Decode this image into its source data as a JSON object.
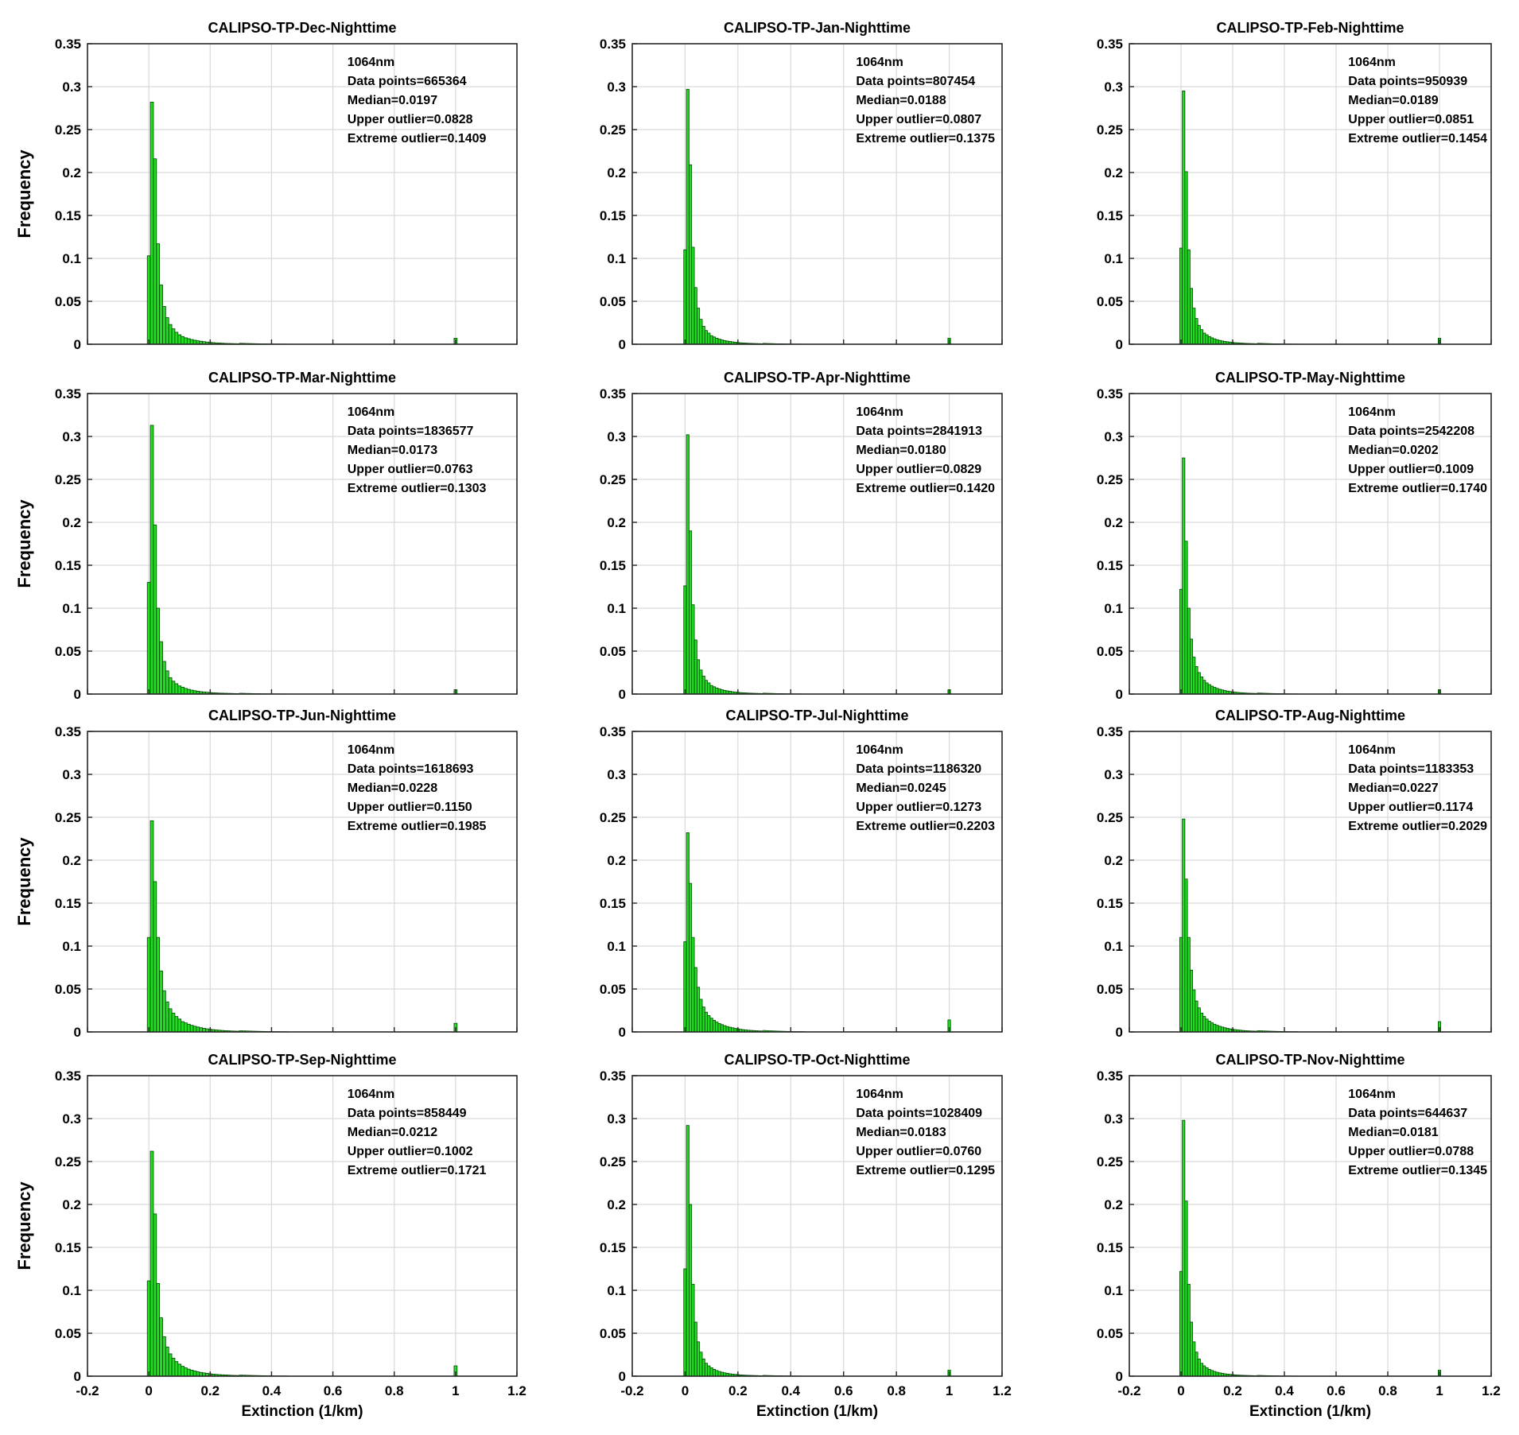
{
  "figure": {
    "ylabel": "Frequency",
    "xlabel": "Extinction (1/km)"
  },
  "chart_data": [
    {
      "type": "bar",
      "title": "CALIPSO-TP-Dec-Nighttime",
      "ylabel": "Frequency",
      "xlabel": "",
      "xlim": [
        -0.2,
        1.2
      ],
      "ylim": [
        0,
        0.35
      ],
      "xticks": [
        "-0.2",
        "0",
        "0.2",
        "0.4",
        "0.6",
        "0.8",
        "1",
        "1.2"
      ],
      "yticks": [
        "0",
        "0.05",
        "0.1",
        "0.15",
        "0.2",
        "0.25",
        "0.3",
        "0.35"
      ],
      "grid": true,
      "show_xticks": false,
      "annotations": [
        "1064nm",
        "Data points=665364",
        "Median=0.0197",
        "Upper outlier=0.0828",
        "Extreme outlier=0.1409"
      ],
      "bin_width": 0.01,
      "bins_start": -0.005,
      "values": [
        0.103,
        0.282,
        0.216,
        0.117,
        0.069,
        0.044,
        0.031,
        0.023,
        0.018,
        0.014,
        0.011,
        0.009,
        0.0075,
        0.0065,
        0.0055,
        0.0047,
        0.004,
        0.0035,
        0.003,
        0.0026,
        0.0022,
        0.0019,
        0.0016,
        0.0014,
        0.0012,
        0.001,
        0.0009,
        0.0008,
        0.0007,
        0.0006
      ],
      "tail_value": 0.0012,
      "outlier": {
        "x": 1.0,
        "value": 0.007
      }
    },
    {
      "type": "bar",
      "title": "CALIPSO-TP-Jan-Nighttime",
      "ylabel": "",
      "xlabel": "",
      "xlim": [
        -0.2,
        1.2
      ],
      "ylim": [
        0,
        0.35
      ],
      "xticks": [
        "-0.2",
        "0",
        "0.2",
        "0.4",
        "0.6",
        "0.8",
        "1",
        "1.2"
      ],
      "yticks": [
        "0",
        "0.05",
        "0.1",
        "0.15",
        "0.2",
        "0.25",
        "0.3",
        "0.35"
      ],
      "grid": true,
      "show_xticks": false,
      "annotations": [
        "1064nm",
        "Data points=807454",
        "Median=0.0188",
        "Upper outlier=0.0807",
        "Extreme outlier=0.1375"
      ],
      "bin_width": 0.01,
      "bins_start": -0.005,
      "values": [
        0.11,
        0.297,
        0.209,
        0.113,
        0.066,
        0.042,
        0.029,
        0.021,
        0.016,
        0.013,
        0.01,
        0.0085,
        0.007,
        0.006,
        0.005,
        0.0043,
        0.0037,
        0.0032,
        0.0028,
        0.0024,
        0.002,
        0.0017,
        0.0015,
        0.0013,
        0.0011,
        0.001,
        0.0009,
        0.0008,
        0.0007,
        0.0006
      ],
      "tail_value": 0.0011,
      "outlier": {
        "x": 1.0,
        "value": 0.007
      }
    },
    {
      "type": "bar",
      "title": "CALIPSO-TP-Feb-Nighttime",
      "ylabel": "",
      "xlabel": "",
      "xlim": [
        -0.2,
        1.2
      ],
      "ylim": [
        0,
        0.35
      ],
      "xticks": [
        "-0.2",
        "0",
        "0.2",
        "0.4",
        "0.6",
        "0.8",
        "1",
        "1.2"
      ],
      "yticks": [
        "0",
        "0.05",
        "0.1",
        "0.15",
        "0.2",
        "0.25",
        "0.3",
        "0.35"
      ],
      "grid": true,
      "show_xticks": false,
      "annotations": [
        "1064nm",
        "Data points=950939",
        "Median=0.0189",
        "Upper outlier=0.0851",
        "Extreme outlier=0.1454"
      ],
      "bin_width": 0.01,
      "bins_start": -0.005,
      "values": [
        0.112,
        0.295,
        0.201,
        0.11,
        0.065,
        0.042,
        0.03,
        0.022,
        0.017,
        0.013,
        0.011,
        0.009,
        0.0075,
        0.0063,
        0.0053,
        0.0045,
        0.0038,
        0.0033,
        0.0029,
        0.0025,
        0.0021,
        0.0018,
        0.0016,
        0.0014,
        0.0012,
        0.001,
        0.0009,
        0.0008,
        0.0007,
        0.0006
      ],
      "tail_value": 0.0012,
      "outlier": {
        "x": 1.0,
        "value": 0.007
      }
    },
    {
      "type": "bar",
      "title": "CALIPSO-TP-Mar-Nighttime",
      "ylabel": "Frequency",
      "xlabel": "",
      "xlim": [
        -0.2,
        1.2
      ],
      "ylim": [
        0,
        0.35
      ],
      "xticks": [
        "-0.2",
        "0",
        "0.2",
        "0.4",
        "0.6",
        "0.8",
        "1",
        "1.2"
      ],
      "yticks": [
        "0",
        "0.05",
        "0.1",
        "0.15",
        "0.2",
        "0.25",
        "0.3",
        "0.35"
      ],
      "grid": true,
      "show_xticks": false,
      "annotations": [
        "1064nm",
        "Data points=1836577",
        "Median=0.0173",
        "Upper outlier=0.0763",
        "Extreme outlier=0.1303"
      ],
      "bin_width": 0.01,
      "bins_start": -0.005,
      "values": [
        0.13,
        0.313,
        0.197,
        0.1,
        0.061,
        0.038,
        0.027,
        0.019,
        0.015,
        0.012,
        0.0095,
        0.008,
        0.0065,
        0.0055,
        0.0046,
        0.0039,
        0.0033,
        0.0028,
        0.0024,
        0.0021,
        0.0018,
        0.0015,
        0.0013,
        0.0011,
        0.001,
        0.0009,
        0.0008,
        0.0007,
        0.0006,
        0.0005
      ],
      "tail_value": 0.001,
      "outlier": {
        "x": 1.0,
        "value": 0.005
      }
    },
    {
      "type": "bar",
      "title": "CALIPSO-TP-Apr-Nighttime",
      "ylabel": "",
      "xlabel": "",
      "xlim": [
        -0.2,
        1.2
      ],
      "ylim": [
        0,
        0.35
      ],
      "xticks": [
        "-0.2",
        "0",
        "0.2",
        "0.4",
        "0.6",
        "0.8",
        "1",
        "1.2"
      ],
      "yticks": [
        "0",
        "0.05",
        "0.1",
        "0.15",
        "0.2",
        "0.25",
        "0.3",
        "0.35"
      ],
      "grid": true,
      "show_xticks": false,
      "annotations": [
        "1064nm",
        "Data points=2841913",
        "Median=0.0180",
        "Upper outlier=0.0829",
        "Extreme outlier=0.1420"
      ],
      "bin_width": 0.01,
      "bins_start": -0.005,
      "values": [
        0.126,
        0.302,
        0.19,
        0.104,
        0.063,
        0.04,
        0.028,
        0.021,
        0.016,
        0.013,
        0.01,
        0.0085,
        0.007,
        0.006,
        0.005,
        0.0043,
        0.0037,
        0.0032,
        0.0027,
        0.0023,
        0.002,
        0.0017,
        0.0015,
        0.0013,
        0.0011,
        0.001,
        0.0009,
        0.0008,
        0.0007,
        0.0006
      ],
      "tail_value": 0.0011,
      "outlier": {
        "x": 1.0,
        "value": 0.005
      }
    },
    {
      "type": "bar",
      "title": "CALIPSO-TP-May-Nighttime",
      "ylabel": "",
      "xlabel": "",
      "xlim": [
        -0.2,
        1.2
      ],
      "ylim": [
        0,
        0.35
      ],
      "xticks": [
        "-0.2",
        "0",
        "0.2",
        "0.4",
        "0.6",
        "0.8",
        "1",
        "1.2"
      ],
      "yticks": [
        "0",
        "0.05",
        "0.1",
        "0.15",
        "0.2",
        "0.25",
        "0.3",
        "0.35"
      ],
      "grid": true,
      "show_xticks": false,
      "annotations": [
        "1064nm",
        "Data points=2542208",
        "Median=0.0202",
        "Upper outlier=0.1009",
        "Extreme outlier=0.1740"
      ],
      "bin_width": 0.01,
      "bins_start": -0.005,
      "values": [
        0.122,
        0.275,
        0.178,
        0.1,
        0.064,
        0.043,
        0.032,
        0.025,
        0.02,
        0.016,
        0.013,
        0.011,
        0.0092,
        0.0078,
        0.0066,
        0.0056,
        0.0048,
        0.0041,
        0.0035,
        0.003,
        0.0026,
        0.0022,
        0.0019,
        0.0016,
        0.0014,
        0.0012,
        0.001,
        0.0009,
        0.0008,
        0.0007
      ],
      "tail_value": 0.0013,
      "outlier": {
        "x": 1.0,
        "value": 0.005
      }
    },
    {
      "type": "bar",
      "title": "CALIPSO-TP-Jun-Nighttime",
      "ylabel": "Frequency",
      "xlabel": "",
      "xlim": [
        -0.2,
        1.2
      ],
      "ylim": [
        0,
        0.35
      ],
      "xticks": [
        "-0.2",
        "0",
        "0.2",
        "0.4",
        "0.6",
        "0.8",
        "1",
        "1.2"
      ],
      "yticks": [
        "0",
        "0.05",
        "0.1",
        "0.15",
        "0.2",
        "0.25",
        "0.3",
        "0.35"
      ],
      "grid": true,
      "show_xticks": false,
      "annotations": [
        "1064nm",
        "Data points=1618693",
        "Median=0.0228",
        "Upper outlier=0.1150",
        "Extreme outlier=0.1985"
      ],
      "bin_width": 0.01,
      "bins_start": -0.005,
      "values": [
        0.11,
        0.246,
        0.175,
        0.11,
        0.071,
        0.048,
        0.035,
        0.027,
        0.022,
        0.018,
        0.015,
        0.012,
        0.0105,
        0.009,
        0.0077,
        0.0066,
        0.0057,
        0.0049,
        0.0042,
        0.0036,
        0.0031,
        0.0027,
        0.0023,
        0.002,
        0.0017,
        0.0015,
        0.0013,
        0.0011,
        0.001,
        0.0009
      ],
      "tail_value": 0.0015,
      "outlier": {
        "x": 1.0,
        "value": 0.01
      }
    },
    {
      "type": "bar",
      "title": "CALIPSO-TP-Jul-Nighttime",
      "ylabel": "",
      "xlabel": "",
      "xlim": [
        -0.2,
        1.2
      ],
      "ylim": [
        0,
        0.35
      ],
      "xticks": [
        "-0.2",
        "0",
        "0.2",
        "0.4",
        "0.6",
        "0.8",
        "1",
        "1.2"
      ],
      "yticks": [
        "0",
        "0.05",
        "0.1",
        "0.15",
        "0.2",
        "0.25",
        "0.3",
        "0.35"
      ],
      "grid": true,
      "show_xticks": false,
      "annotations": [
        "1064nm",
        "Data points=1186320",
        "Median=0.0245",
        "Upper outlier=0.1273",
        "Extreme outlier=0.2203"
      ],
      "bin_width": 0.01,
      "bins_start": -0.005,
      "values": [
        0.105,
        0.232,
        0.173,
        0.11,
        0.075,
        0.052,
        0.038,
        0.029,
        0.023,
        0.019,
        0.016,
        0.0135,
        0.0115,
        0.0098,
        0.0085,
        0.0073,
        0.0063,
        0.0055,
        0.0048,
        0.0041,
        0.0036,
        0.0031,
        0.0027,
        0.0023,
        0.002,
        0.0018,
        0.0016,
        0.0014,
        0.0012,
        0.0011
      ],
      "tail_value": 0.0018,
      "outlier": {
        "x": 1.0,
        "value": 0.014
      }
    },
    {
      "type": "bar",
      "title": "CALIPSO-TP-Aug-Nighttime",
      "ylabel": "",
      "xlabel": "",
      "xlim": [
        -0.2,
        1.2
      ],
      "ylim": [
        0,
        0.35
      ],
      "xticks": [
        "-0.2",
        "0",
        "0.2",
        "0.4",
        "0.6",
        "0.8",
        "1",
        "1.2"
      ],
      "yticks": [
        "0",
        "0.05",
        "0.1",
        "0.15",
        "0.2",
        "0.25",
        "0.3",
        "0.35"
      ],
      "grid": true,
      "show_xticks": false,
      "annotations": [
        "1064nm",
        "Data points=1183353",
        "Median=0.0227",
        "Upper outlier=0.1174",
        "Extreme outlier=0.2029"
      ],
      "bin_width": 0.01,
      "bins_start": -0.005,
      "values": [
        0.11,
        0.248,
        0.178,
        0.11,
        0.072,
        0.049,
        0.036,
        0.028,
        0.022,
        0.018,
        0.015,
        0.0125,
        0.0106,
        0.009,
        0.0077,
        0.0066,
        0.0057,
        0.0049,
        0.0042,
        0.0036,
        0.0031,
        0.0027,
        0.0023,
        0.002,
        0.0017,
        0.0015,
        0.0013,
        0.0011,
        0.001,
        0.0009
      ],
      "tail_value": 0.0016,
      "outlier": {
        "x": 1.0,
        "value": 0.012
      }
    },
    {
      "type": "bar",
      "title": "CALIPSO-TP-Sep-Nighttime",
      "ylabel": "Frequency",
      "xlabel": "Extinction (1/km)",
      "xlim": [
        -0.2,
        1.2
      ],
      "ylim": [
        0,
        0.35
      ],
      "xticks": [
        "-0.2",
        "0",
        "0.2",
        "0.4",
        "0.6",
        "0.8",
        "1",
        "1.2"
      ],
      "yticks": [
        "0",
        "0.05",
        "0.1",
        "0.15",
        "0.2",
        "0.25",
        "0.3",
        "0.35"
      ],
      "grid": true,
      "show_xticks": true,
      "annotations": [
        "1064nm",
        "Data points=858449",
        "Median=0.0212",
        "Upper outlier=0.1002",
        "Extreme outlier=0.1721"
      ],
      "bin_width": 0.01,
      "bins_start": -0.005,
      "values": [
        0.111,
        0.262,
        0.189,
        0.108,
        0.068,
        0.046,
        0.034,
        0.026,
        0.021,
        0.017,
        0.014,
        0.0115,
        0.0097,
        0.0082,
        0.007,
        0.006,
        0.0051,
        0.0044,
        0.0038,
        0.0033,
        0.0028,
        0.0024,
        0.0021,
        0.0018,
        0.0016,
        0.0014,
        0.0012,
        0.001,
        0.0009,
        0.0008
      ],
      "tail_value": 0.0014,
      "outlier": {
        "x": 1.0,
        "value": 0.012
      }
    },
    {
      "type": "bar",
      "title": "CALIPSO-TP-Oct-Nighttime",
      "ylabel": "",
      "xlabel": "Extinction (1/km)",
      "xlim": [
        -0.2,
        1.2
      ],
      "ylim": [
        0,
        0.35
      ],
      "xticks": [
        "-0.2",
        "0",
        "0.2",
        "0.4",
        "0.6",
        "0.8",
        "1",
        "1.2"
      ],
      "yticks": [
        "0",
        "0.05",
        "0.1",
        "0.15",
        "0.2",
        "0.25",
        "0.3",
        "0.35"
      ],
      "grid": true,
      "show_xticks": true,
      "annotations": [
        "1064nm",
        "Data points=1028409",
        "Median=0.0183",
        "Upper outlier=0.0760",
        "Extreme outlier=0.1295"
      ],
      "bin_width": 0.01,
      "bins_start": -0.005,
      "values": [
        0.125,
        0.292,
        0.2,
        0.107,
        0.063,
        0.04,
        0.028,
        0.02,
        0.015,
        0.012,
        0.0098,
        0.008,
        0.0066,
        0.0055,
        0.0046,
        0.0039,
        0.0033,
        0.0028,
        0.0024,
        0.0021,
        0.0018,
        0.0015,
        0.0013,
        0.0011,
        0.001,
        0.0009,
        0.0008,
        0.0007,
        0.0006,
        0.0005
      ],
      "tail_value": 0.001,
      "outlier": {
        "x": 1.0,
        "value": 0.007
      }
    },
    {
      "type": "bar",
      "title": "CALIPSO-TP-Nov-Nighttime",
      "ylabel": "",
      "xlabel": "Extinction (1/km)",
      "xlim": [
        -0.2,
        1.2
      ],
      "ylim": [
        0,
        0.35
      ],
      "xticks": [
        "-0.2",
        "0",
        "0.2",
        "0.4",
        "0.6",
        "0.8",
        "1",
        "1.2"
      ],
      "yticks": [
        "0",
        "0.05",
        "0.1",
        "0.15",
        "0.2",
        "0.25",
        "0.3",
        "0.35"
      ],
      "grid": true,
      "show_xticks": true,
      "annotations": [
        "1064nm",
        "Data points=644637",
        "Median=0.0181",
        "Upper outlier=0.0788",
        "Extreme outlier=0.1345"
      ],
      "bin_width": 0.01,
      "bins_start": -0.005,
      "values": [
        0.122,
        0.298,
        0.204,
        0.107,
        0.063,
        0.04,
        0.028,
        0.02,
        0.015,
        0.012,
        0.0098,
        0.008,
        0.0066,
        0.0055,
        0.0046,
        0.0039,
        0.0033,
        0.0028,
        0.0024,
        0.0021,
        0.0018,
        0.0015,
        0.0013,
        0.0011,
        0.001,
        0.0009,
        0.0008,
        0.0007,
        0.0006,
        0.0005
      ],
      "tail_value": 0.001,
      "outlier": {
        "x": 1.0,
        "value": 0.007
      }
    }
  ],
  "style": {
    "bar_fill": "#22dd22",
    "bar_edge": "#004400",
    "grid_color": "#d9d9d9",
    "axis_color": "#262626",
    "text_color": "#000000"
  }
}
